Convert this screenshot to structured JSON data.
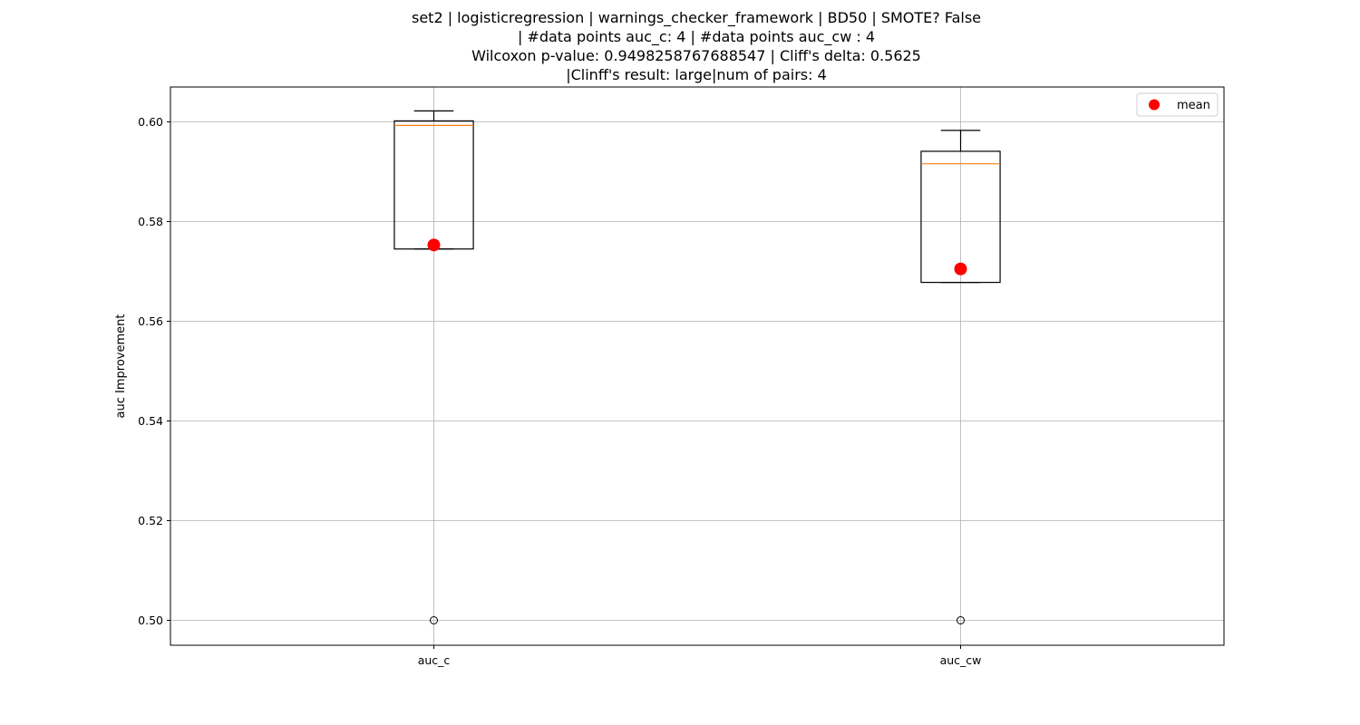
{
  "chart_data": {
    "type": "box",
    "title_lines": [
      "set2 | logisticregression | warnings_checker_framework | BD50 | SMOTE? False",
      "| #data points auc_c: 4 | #data points auc_cw : 4",
      "Wilcoxon p-value: 0.9498258767688547 | Cliff's delta: 0.5625",
      "|Clinff's result: large|num of pairs: 4"
    ],
    "xlabel": "",
    "ylabel": "auc Improvement",
    "ylim": [
      0.495,
      0.607
    ],
    "y_ticks": [
      0.5,
      0.52,
      0.54,
      0.56,
      0.58,
      0.6
    ],
    "grid": true,
    "categories": [
      "auc_c",
      "auc_cw"
    ],
    "boxes": [
      {
        "name": "auc_c",
        "whislo": 0.5745,
        "q1": 0.5745,
        "median": 0.5993,
        "q3": 0.6002,
        "whishi": 0.6022,
        "mean": 0.5753,
        "fliers": [
          0.5
        ]
      },
      {
        "name": "auc_cw",
        "whislo": 0.5678,
        "q1": 0.5678,
        "median": 0.5916,
        "q3": 0.5941,
        "whishi": 0.5983,
        "mean": 0.5705,
        "fliers": [
          0.5
        ]
      }
    ],
    "legend": {
      "placement": "top-right",
      "entries": [
        {
          "label": "mean",
          "color": "#ff0000",
          "marker": "circle"
        }
      ]
    },
    "colors": {
      "box": "#000000",
      "median": "#ff7f0e",
      "mean": "#ff0000",
      "grid": "#b0b0b0"
    }
  }
}
